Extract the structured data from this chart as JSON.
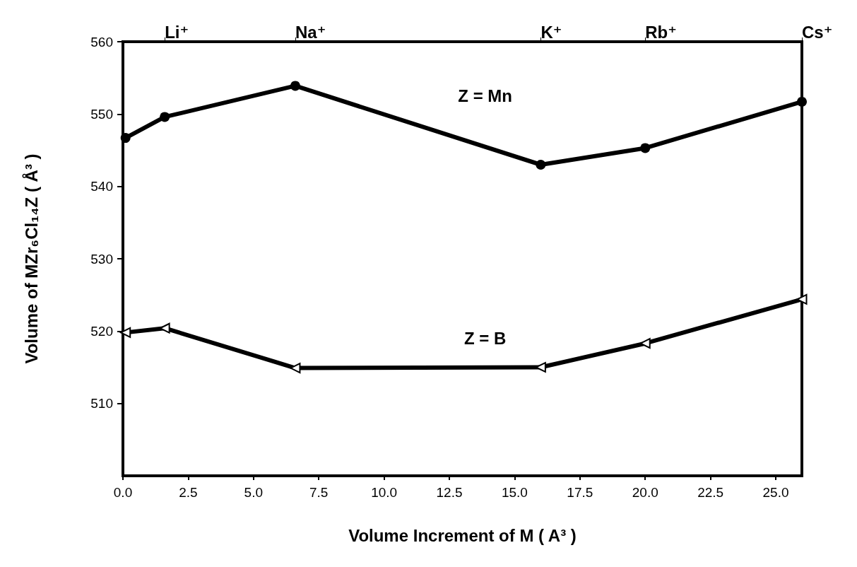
{
  "chart_data": {
    "type": "line",
    "xlabel": "Volume Increment of M ( A³ )",
    "ylabel": "Volume of MZr₆Cl₁₄Z ( Å³ )",
    "x": [
      0.1,
      1.6,
      6.6,
      16.0,
      20.0,
      26.0
    ],
    "annotations": [
      "Li⁺",
      "Na⁺",
      "K⁺",
      "Rb⁺",
      "Cs⁺"
    ],
    "series": [
      {
        "name": "Z = Mn",
        "color": "#000000",
        "marker": "circle",
        "values": [
          546.7,
          549.6,
          553.9,
          543.0,
          545.3,
          551.7
        ]
      },
      {
        "name": "Z = B",
        "color": "#000000",
        "marker": "triangle",
        "values": [
          519.8,
          520.4,
          514.9,
          515.0,
          518.3,
          524.4
        ]
      }
    ],
    "xlim": [
      0,
      26
    ],
    "xticks": [
      {
        "value": 0,
        "label": "0.0"
      },
      {
        "value": 2.5,
        "label": "2.5"
      },
      {
        "value": 5,
        "label": "5.0"
      },
      {
        "value": 7.5,
        "label": "7.5"
      },
      {
        "value": 10,
        "label": "10.0"
      },
      {
        "value": 12.5,
        "label": "12.5"
      },
      {
        "value": 15,
        "label": "15.0"
      },
      {
        "value": 17.5,
        "label": "17.5"
      },
      {
        "value": 20,
        "label": "20.0"
      },
      {
        "value": 22.5,
        "label": "22.5"
      },
      {
        "value": 25,
        "label": "25.0"
      }
    ],
    "ylim": [
      500,
      560
    ],
    "yticks": [
      510,
      520,
      530,
      540,
      550,
      560
    ],
    "line_style": "solid"
  }
}
